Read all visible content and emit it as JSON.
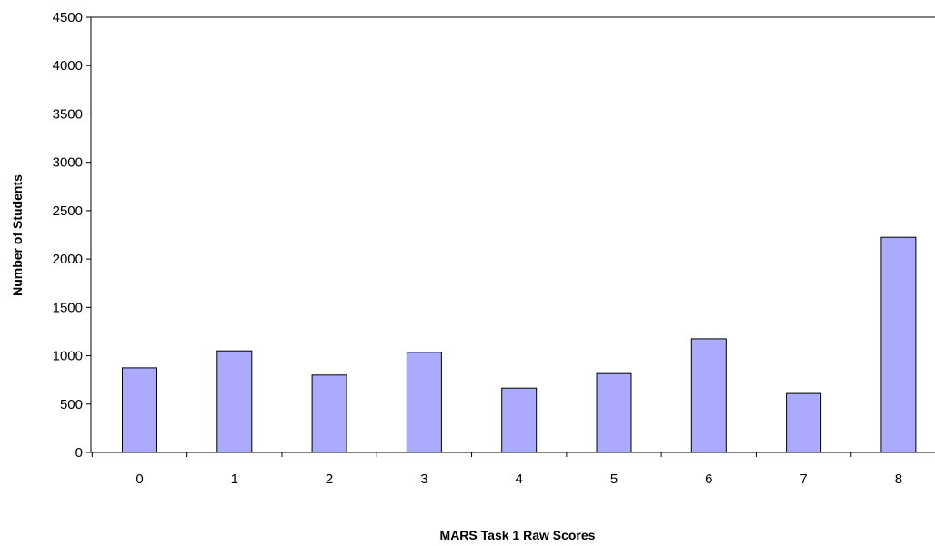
{
  "chart_data": {
    "type": "bar",
    "title": "",
    "xlabel": "MARS Task 1 Raw Scores",
    "ylabel": "Number of Students",
    "categories": [
      "0",
      "1",
      "2",
      "3",
      "4",
      "5",
      "6",
      "7",
      "8"
    ],
    "values": [
      875,
      1050,
      800,
      1035,
      665,
      815,
      1175,
      610,
      2225
    ],
    "ylim": [
      0,
      4500
    ],
    "yticks": [
      "0",
      "500",
      "1000",
      "1500",
      "2000",
      "2500",
      "3000",
      "3500",
      "4000",
      "4500"
    ],
    "grid": false,
    "legend": "none",
    "colors": {
      "bar_fill": "#aaaaff",
      "bar_stroke": "#000000",
      "axis": "#000000"
    }
  }
}
